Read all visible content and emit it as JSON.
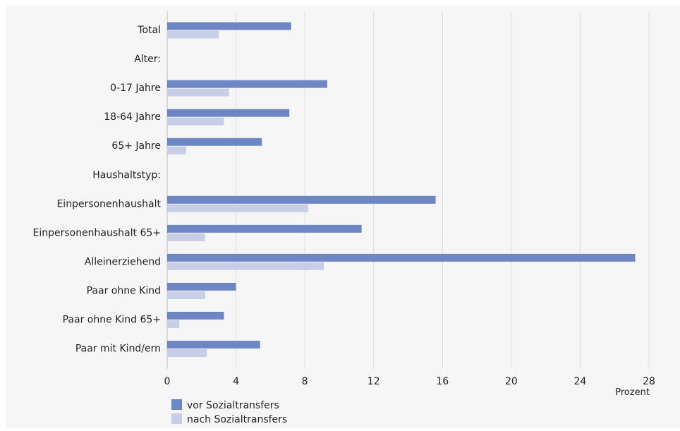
{
  "chart_data": {
    "type": "bar",
    "orientation": "horizontal",
    "categories": [
      "Total",
      "Alter:",
      "0-17 Jahre",
      "18-64 Jahre",
      "65+ Jahre",
      "Haushaltstyp:",
      "Einpersonenhaushalt",
      "Einpersonenhaushalt 65+",
      "Alleinerziehend",
      "Paar ohne Kind",
      "Paar ohne Kind 65+",
      "Paar mit Kind/ern"
    ],
    "series": [
      {
        "name": "vor Sozialtransfers",
        "color": "#6f86c4",
        "values": [
          7.2,
          null,
          9.3,
          7.1,
          5.5,
          null,
          15.6,
          11.3,
          27.2,
          4.0,
          3.3,
          5.4
        ]
      },
      {
        "name": "nach Sozialtransfers",
        "color": "#c7cee6",
        "values": [
          3.0,
          null,
          3.6,
          3.3,
          1.1,
          null,
          8.2,
          2.2,
          9.1,
          2.2,
          0.7,
          2.3
        ]
      }
    ],
    "xlim": [
      0,
      28
    ],
    "xticks": [
      0,
      4,
      8,
      12,
      16,
      20,
      24,
      28
    ],
    "xlabel": "Prozent",
    "grid": true,
    "legend_position": "bottom-left"
  }
}
